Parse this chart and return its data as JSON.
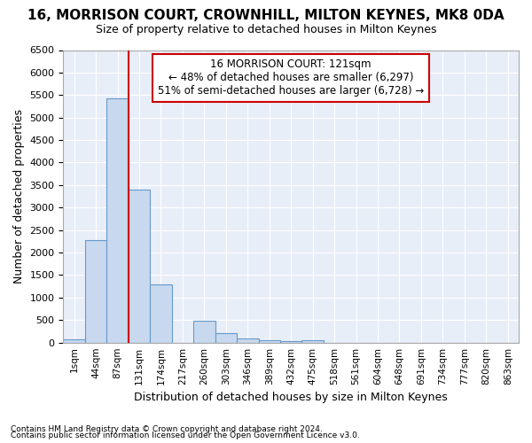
{
  "title1": "16, MORRISON COURT, CROWNHILL, MILTON KEYNES, MK8 0DA",
  "title2": "Size of property relative to detached houses in Milton Keynes",
  "xlabel": "Distribution of detached houses by size in Milton Keynes",
  "ylabel": "Number of detached properties",
  "footnote1": "Contains HM Land Registry data © Crown copyright and database right 2024.",
  "footnote2": "Contains public sector information licensed under the Open Government Licence v3.0.",
  "annotation_line1": "16 MORRISON COURT: 121sqm",
  "annotation_line2": "← 48% of detached houses are smaller (6,297)",
  "annotation_line3": "51% of semi-detached houses are larger (6,728) →",
  "bar_labels": [
    "1sqm",
    "44sqm",
    "87sqm",
    "131sqm",
    "174sqm",
    "217sqm",
    "260sqm",
    "303sqm",
    "346sqm",
    "389sqm",
    "432sqm",
    "475sqm",
    "518sqm",
    "561sqm",
    "604sqm",
    "648sqm",
    "691sqm",
    "734sqm",
    "777sqm",
    "820sqm",
    "863sqm"
  ],
  "bar_values": [
    70,
    2280,
    5420,
    3400,
    1300,
    0,
    480,
    210,
    100,
    60,
    30,
    55,
    0,
    0,
    0,
    0,
    0,
    0,
    0,
    0,
    0
  ],
  "bar_color": "#c8d8ee",
  "bar_edgecolor": "#6699cc",
  "vline_x_idx": 3,
  "vline_color": "#cc0000",
  "ylim": [
    0,
    6500
  ],
  "yticks": [
    0,
    500,
    1000,
    1500,
    2000,
    2500,
    3000,
    3500,
    4000,
    4500,
    5000,
    5500,
    6000,
    6500
  ],
  "annotation_box_facecolor": "#ffffff",
  "annotation_box_edgecolor": "#cc0000",
  "figure_facecolor": "#ffffff",
  "axes_facecolor": "#e8eef8",
  "grid_color": "#ffffff",
  "title1_fontsize": 11,
  "title2_fontsize": 9
}
